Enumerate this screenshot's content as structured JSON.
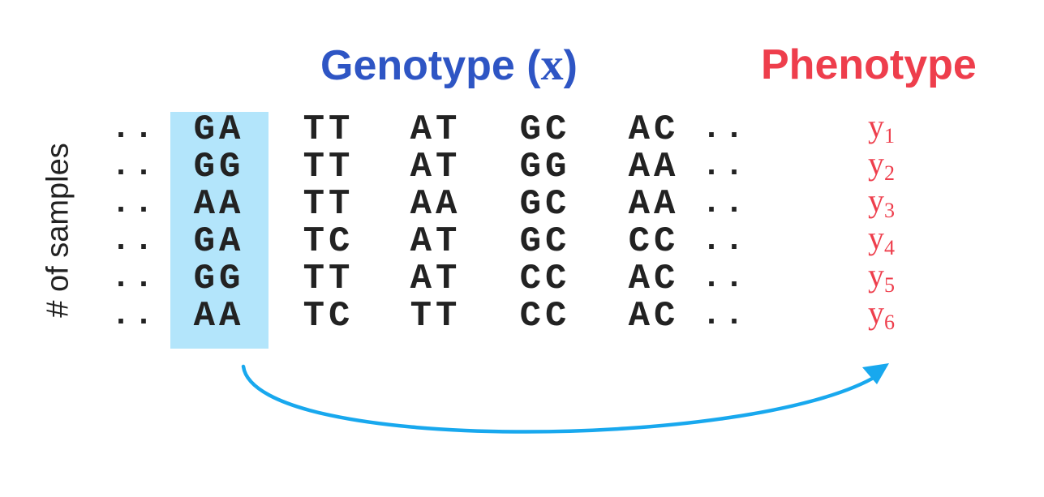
{
  "titles": {
    "genotype_word": "Genotype",
    "genotype_var_open": "(",
    "genotype_var": "x",
    "genotype_var_close": ")",
    "phenotype": "Phenotype"
  },
  "row_axis_label": "# of samples",
  "ellipsis": "..",
  "highlighted_column_index": 0,
  "genotype_rows": [
    [
      "GA",
      "TT",
      "AT",
      "GC",
      "AC"
    ],
    [
      "GG",
      "TT",
      "AT",
      "GG",
      "AA"
    ],
    [
      "AA",
      "TT",
      "AA",
      "GC",
      "AA"
    ],
    [
      "GA",
      "TC",
      "AT",
      "GC",
      "CC"
    ],
    [
      "GG",
      "TT",
      "AT",
      "CC",
      "AC"
    ],
    [
      "AA",
      "TC",
      "TT",
      "CC",
      "AC"
    ]
  ],
  "phenotypes": [
    {
      "symbol": "y",
      "subscript": "1"
    },
    {
      "symbol": "y",
      "subscript": "2"
    },
    {
      "symbol": "y",
      "subscript": "3"
    },
    {
      "symbol": "y",
      "subscript": "4"
    },
    {
      "symbol": "y",
      "subscript": "5"
    },
    {
      "symbol": "y",
      "subscript": "6"
    }
  ],
  "colors": {
    "genotype_title": "#2e55c4",
    "phenotype_title": "#ee3e4c",
    "highlight_fill": "#b3e5fb",
    "arrow": "#18a8ee",
    "text": "#222222"
  }
}
